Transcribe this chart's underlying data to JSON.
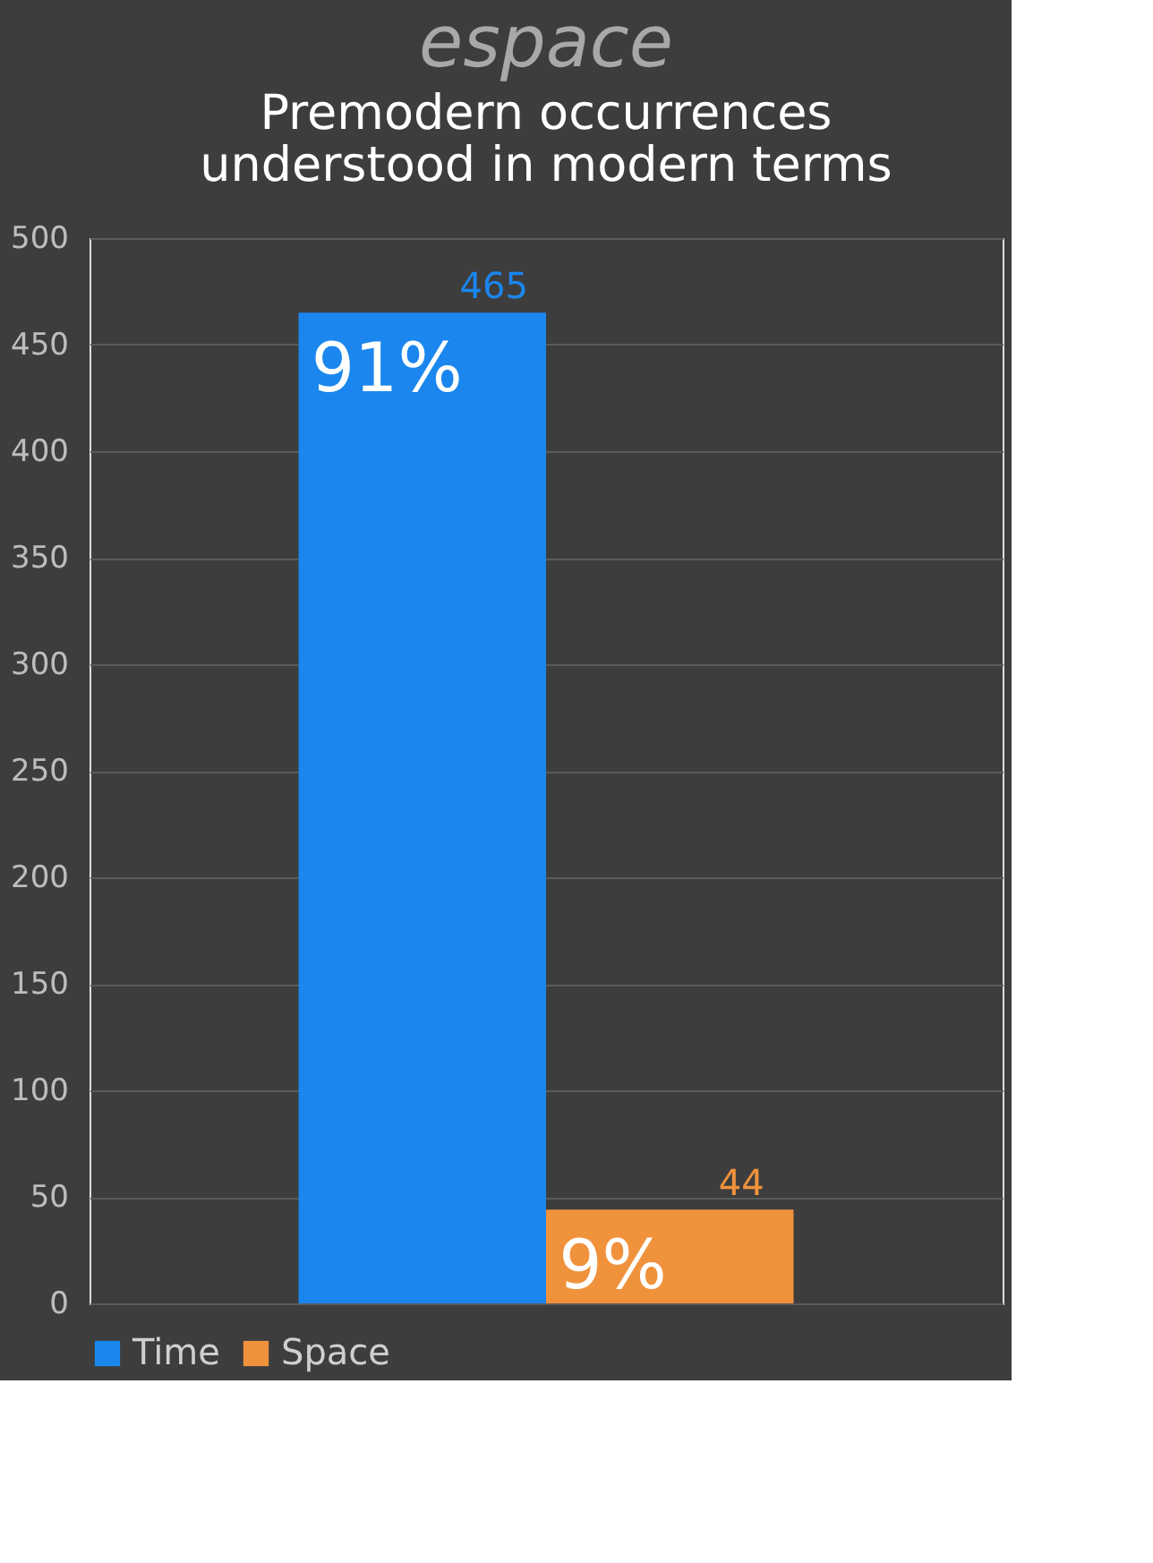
{
  "chart_data": {
    "type": "bar",
    "title": "espace",
    "subtitle": "Premodern occurrences understood in modern terms",
    "categories": [
      null
    ],
    "series": [
      {
        "name": "Time",
        "color": "#1a86ee",
        "values": [
          465
        ]
      },
      {
        "name": "Space",
        "color": "#f0923c",
        "values": [
          44
        ]
      }
    ],
    "ylim": [
      0,
      500
    ],
    "yticks": [
      0,
      50,
      100,
      150,
      200,
      250,
      300,
      350,
      400,
      450,
      500
    ],
    "grid": "y",
    "legend": "bottom",
    "data_labels": true,
    "annotations": [
      {
        "text": "91%",
        "y": 465
      },
      {
        "text": "9%",
        "y": 44
      }
    ]
  }
}
